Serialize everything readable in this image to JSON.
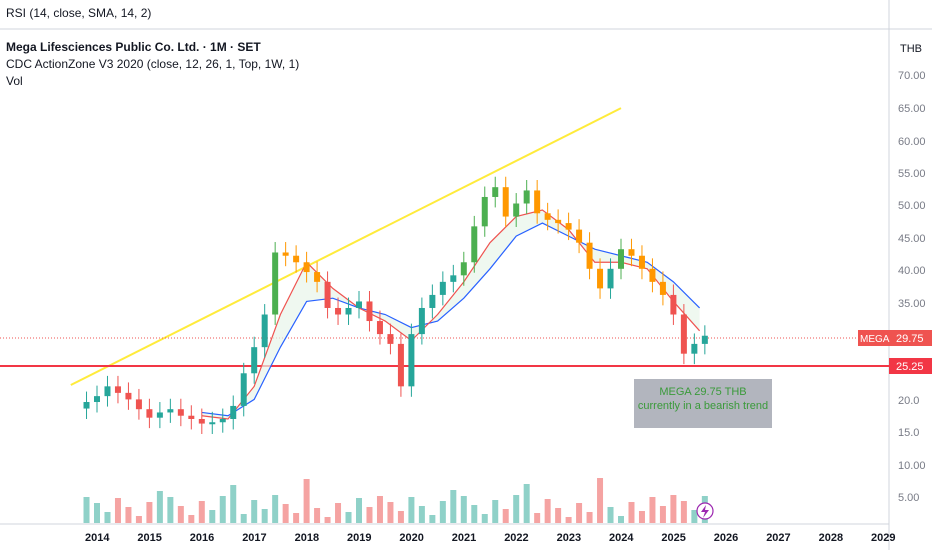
{
  "header": {
    "rsi_label": "RSI (14, close, SMA, 14, 2)",
    "title": "Mega Lifesciences Public Co. Ltd. · 1M · SET",
    "indicator": "CDC ActionZone V3 2020 (close, 12, 26, 1, Top, 1W, 1)",
    "volume_label": "Vol",
    "currency": "THB"
  },
  "price_badge": {
    "symbol": "MEGA",
    "price": "29.75",
    "support": "25.25"
  },
  "callout": {
    "line1": "MEGA 29.75 THB",
    "line2": "currently in a bearish trend"
  },
  "colors": {
    "up": "#26a69a",
    "down": "#ef5350",
    "support_line": "#f23645",
    "trend_line": "#ffeb3b",
    "fast_ema": "#ef5350",
    "slow_ema": "#2962ff",
    "vol_up": "#8fd1c8",
    "vol_down": "#f5a3a2"
  },
  "chart_data": {
    "type": "candlestick",
    "x_tick_labels": [
      "2014",
      "2015",
      "2016",
      "2017",
      "2018",
      "2019",
      "2020",
      "2021",
      "2022",
      "2023",
      "2024",
      "2025",
      "2026",
      "2027",
      "2028",
      "2029"
    ],
    "y_tick_labels": [
      "70.00",
      "65.00",
      "60.00",
      "55.00",
      "50.00",
      "45.00",
      "40.00",
      "35.00",
      "20.0",
      "15.0",
      "10.00",
      "5.00"
    ],
    "ylim": [
      0,
      75
    ],
    "support_level": 25.25,
    "last_price": 29.75,
    "trendline": [
      {
        "date": "2013.5",
        "price": 22.2
      },
      {
        "date": "2024.0",
        "price": 64.6
      }
    ],
    "series": [
      {
        "name": "Price (monthly close)",
        "x": [
          2013.8,
          2014.0,
          2014.2,
          2014.4,
          2014.6,
          2014.8,
          2015.0,
          2015.2,
          2015.4,
          2015.6,
          2015.8,
          2016.0,
          2016.2,
          2016.4,
          2016.6,
          2016.8,
          2017.0,
          2017.2,
          2017.4,
          2017.6,
          2017.8,
          2018.0,
          2018.2,
          2018.4,
          2018.6,
          2018.8,
          2019.0,
          2019.2,
          2019.4,
          2019.6,
          2019.8,
          2020.0,
          2020.2,
          2020.4,
          2020.6,
          2020.8,
          2021.0,
          2021.2,
          2021.4,
          2021.6,
          2021.8,
          2022.0,
          2022.2,
          2022.4,
          2022.6,
          2022.8,
          2023.0,
          2023.2,
          2023.4,
          2023.6,
          2023.8,
          2024.0,
          2024.2,
          2024.4,
          2024.6,
          2024.8,
          2025.0,
          2025.2,
          2025.4,
          2025.6
        ],
        "values": [
          19.6,
          20.5,
          22.0,
          21.0,
          20.0,
          18.5,
          17.2,
          18.0,
          18.5,
          17.5,
          17.0,
          16.3,
          16.5,
          17.0,
          19.0,
          24.0,
          28.0,
          33.0,
          42.5,
          42.0,
          41.0,
          39.5,
          38.0,
          34.0,
          33.0,
          34.0,
          35.0,
          32.0,
          30.0,
          28.5,
          22.0,
          30.0,
          34.0,
          36.0,
          38.0,
          39.0,
          41.0,
          46.5,
          51.0,
          52.5,
          48.0,
          50.0,
          52.0,
          48.5,
          47.5,
          47.0,
          46.0,
          44.0,
          40.0,
          37.0,
          40.0,
          43.0,
          42.0,
          40.0,
          38.0,
          36.0,
          33.0,
          27.0,
          28.5,
          29.75
        ]
      },
      {
        "name": "Fast EMA",
        "x": [
          2016.0,
          2016.5,
          2017.0,
          2017.5,
          2018.0,
          2018.5,
          2019.0,
          2019.5,
          2020.0,
          2020.5,
          2021.0,
          2021.5,
          2022.0,
          2022.5,
          2023.0,
          2023.5,
          2024.0,
          2024.5,
          2025.0,
          2025.5
        ],
        "values": [
          17.5,
          17.0,
          22.0,
          33.0,
          41.0,
          37.0,
          34.0,
          32.0,
          29.0,
          33.0,
          38.0,
          44.0,
          48.0,
          49.0,
          46.0,
          41.0,
          41.0,
          40.0,
          35.0,
          30.5
        ]
      },
      {
        "name": "Slow EMA",
        "x": [
          2016.0,
          2016.5,
          2017.0,
          2017.5,
          2018.0,
          2018.5,
          2019.0,
          2019.5,
          2020.0,
          2020.5,
          2021.0,
          2021.5,
          2022.0,
          2022.5,
          2023.0,
          2023.5,
          2024.0,
          2024.5,
          2025.0,
          2025.5
        ],
        "values": [
          18.0,
          17.5,
          20.0,
          28.0,
          35.0,
          35.5,
          34.0,
          33.0,
          31.0,
          32.0,
          35.5,
          40.0,
          45.0,
          47.0,
          45.0,
          43.0,
          42.0,
          41.0,
          38.0,
          34.0
        ]
      }
    ]
  }
}
